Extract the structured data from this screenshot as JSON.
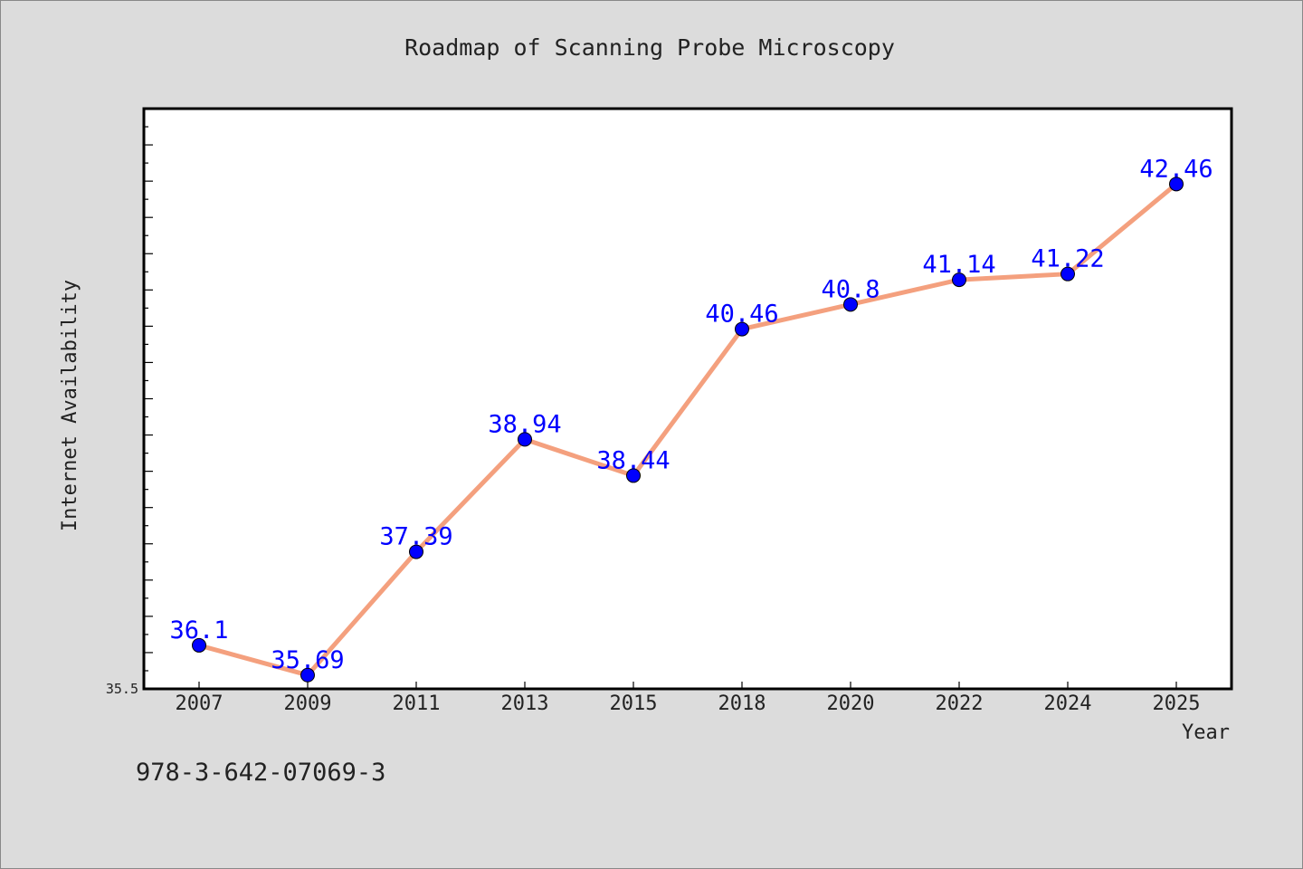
{
  "chart_data": {
    "type": "line",
    "title": "Roadmap of Scanning Probe Microscopy",
    "xlabel": "Year",
    "ylabel": "Internet Availability",
    "categories": [
      "2007",
      "2009",
      "2011",
      "2013",
      "2015",
      "2018",
      "2020",
      "2022",
      "2024",
      "2025"
    ],
    "series": [
      {
        "values": [
          36.1,
          35.69,
          37.39,
          38.94,
          38.44,
          40.46,
          40.8,
          41.14,
          41.22,
          42.46
        ]
      }
    ],
    "data_labels": [
      "36.1",
      "35.69",
      "37.39",
      "38.94",
      "38.44",
      "40.46",
      "40.8",
      "41.14",
      "41.22",
      "42.46"
    ],
    "ylim": [
      35.5,
      43.5
    ],
    "y_tick_label": "35.5",
    "grid": false,
    "legend": "none",
    "annotation": "978-3-642-07069-3",
    "colors": {
      "background": "#dcdcdc",
      "plot_background": "#ffffff",
      "line": "#f4a07e",
      "marker": "#0000ff",
      "data_label": "#0000ff",
      "text": "#222222"
    }
  }
}
